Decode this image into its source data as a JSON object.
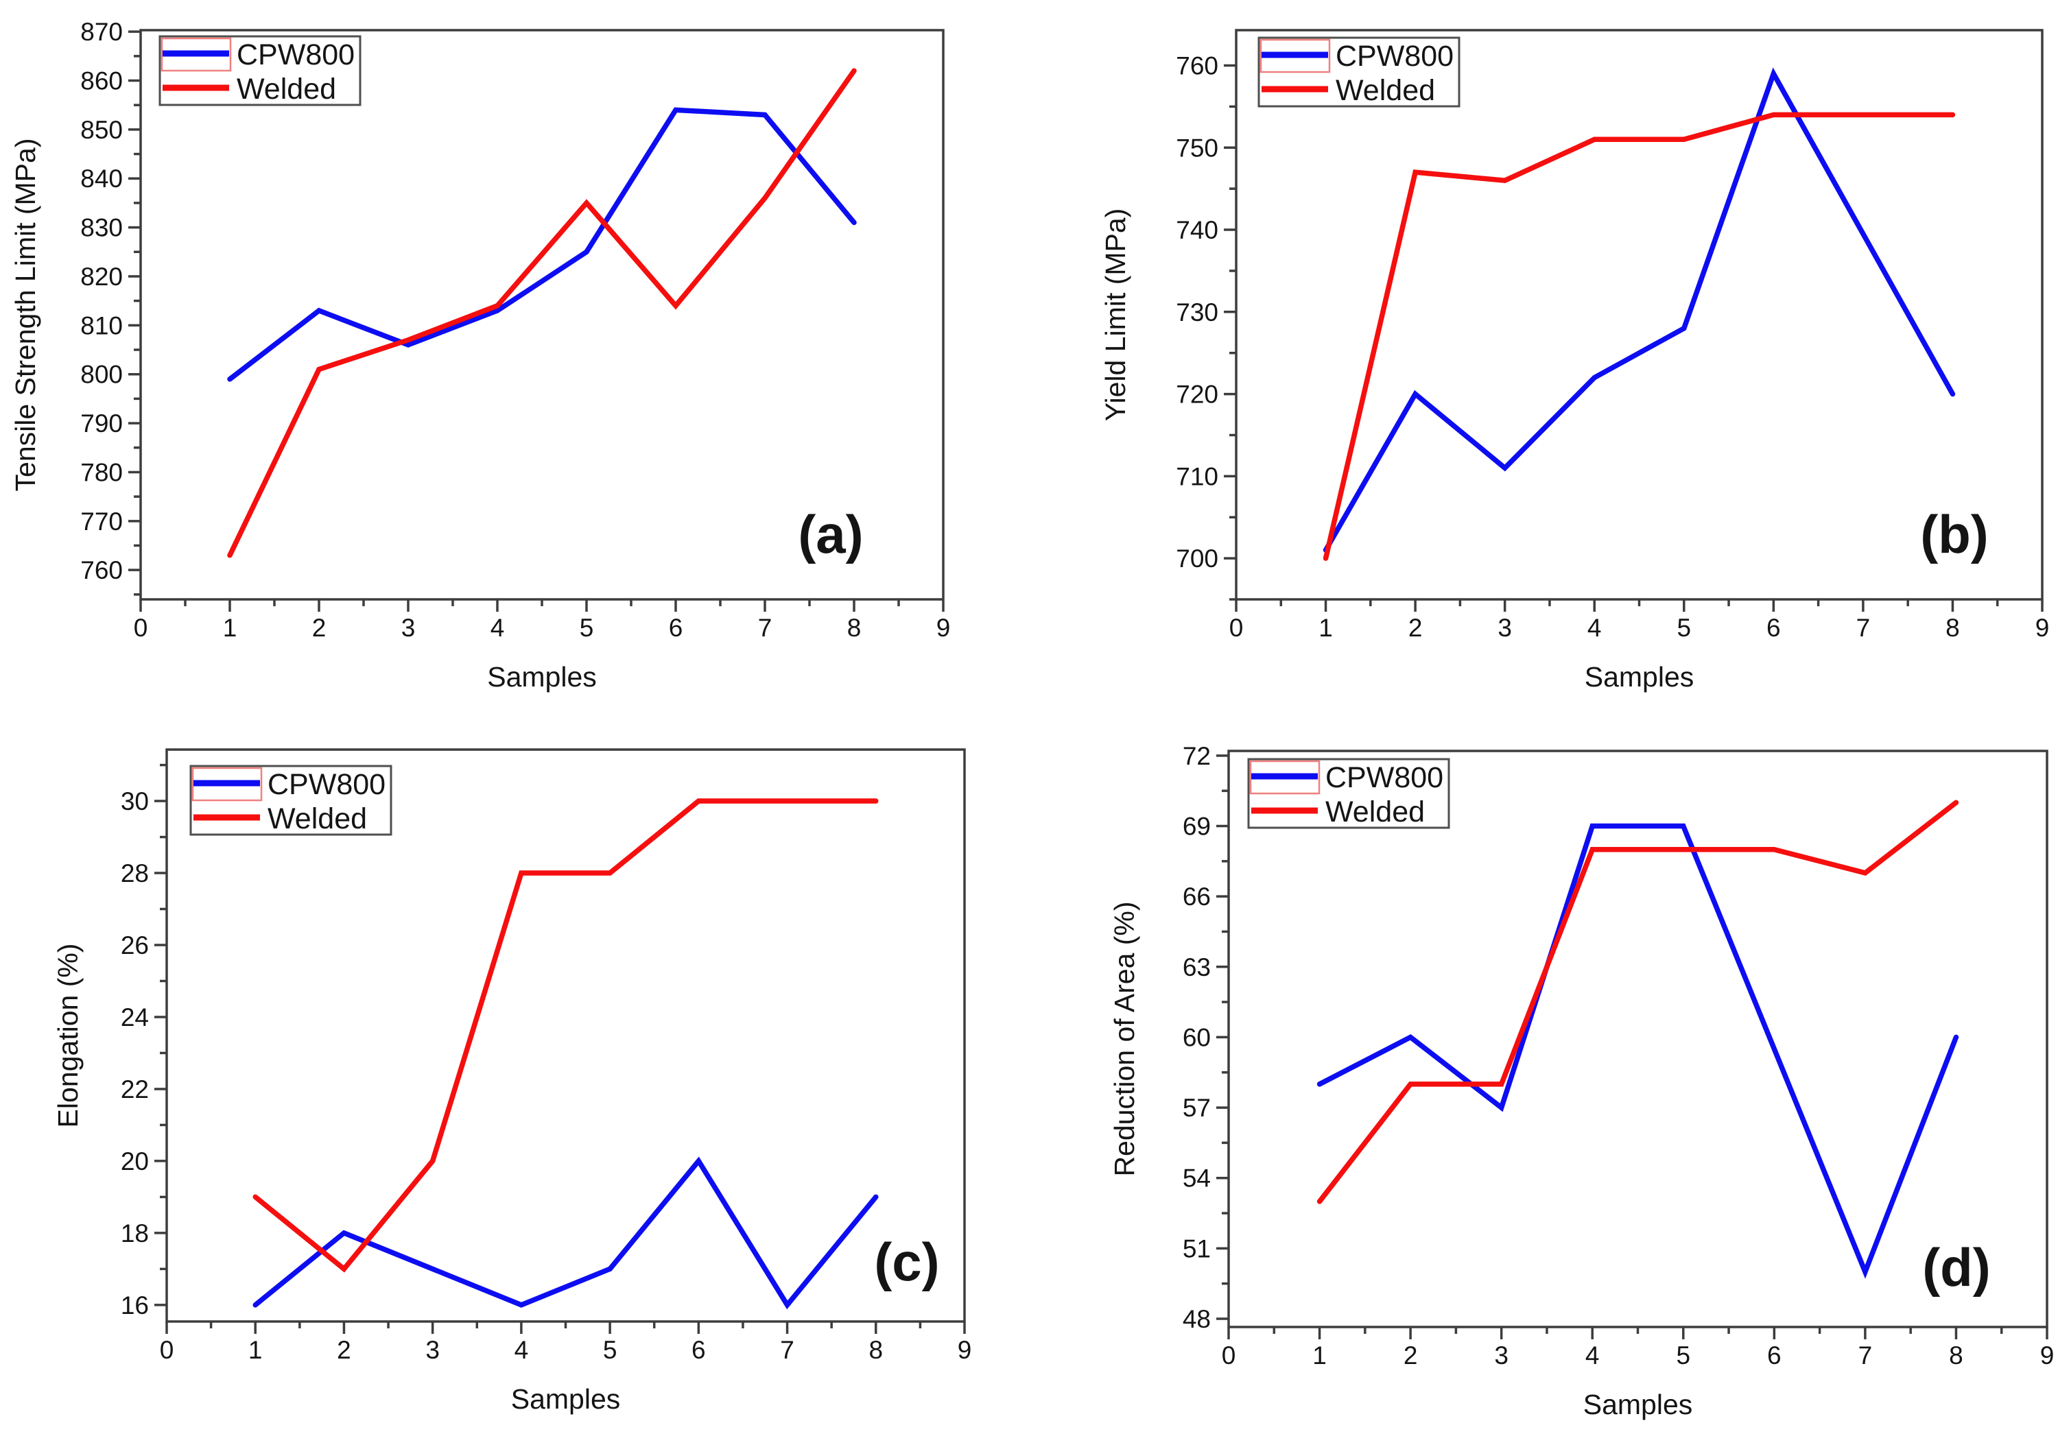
{
  "figure": {
    "description": "Four-panel line chart figure comparing CPW800 base metal and Welded samples",
    "panel_labels": [
      "(a)",
      "(b)",
      "(c)",
      "(d)"
    ]
  },
  "style": {
    "background": "#ffffff",
    "axis_color": "#3d3d3d",
    "text_color": "#141414",
    "legend_border_color": "#4f4f4f",
    "legend_artifact_color": "#f08080",
    "cpw800_color": "#0d0df2",
    "welded_color": "#f50f0f"
  },
  "chart_data": [
    {
      "panel_label": "(a)",
      "type": "line",
      "title": "",
      "xlabel": "Samples",
      "ylabel": "Tensile Strength Limit (MPa)",
      "x": [
        1,
        2,
        3,
        4,
        5,
        6,
        7,
        8
      ],
      "series": [
        {
          "name": "CPW800",
          "color": "#0d0df2",
          "values": [
            799,
            813,
            806,
            813,
            825,
            854,
            853,
            831
          ]
        },
        {
          "name": "Welded",
          "color": "#f50f0f",
          "values": [
            763,
            801,
            807,
            814,
            835,
            814,
            836,
            862
          ]
        }
      ],
      "xlim": [
        0,
        9
      ],
      "ylim": [
        754,
        870.3
      ],
      "xticks": [
        0,
        1,
        2,
        3,
        4,
        5,
        6,
        7,
        8,
        9
      ],
      "yticks": [
        760,
        770,
        780,
        790,
        800,
        810,
        820,
        830,
        840,
        850,
        860,
        870
      ],
      "x_minor_step": 0.5,
      "y_minor_step": 5,
      "grid": false,
      "legend": {
        "position": "top-left",
        "entries": [
          "CPW800",
          "Welded"
        ]
      }
    },
    {
      "panel_label": "(b)",
      "type": "line",
      "title": "",
      "xlabel": "Samples",
      "ylabel": "Yield Limit (MPa)",
      "x": [
        1,
        2,
        3,
        4,
        5,
        6,
        7,
        8
      ],
      "series": [
        {
          "name": "CPW800",
          "color": "#0d0df2",
          "values": [
            701,
            720,
            711,
            722,
            728,
            759,
            739.5,
            720
          ]
        },
        {
          "name": "Welded",
          "color": "#f50f0f",
          "values": [
            700,
            747,
            746,
            751,
            751,
            754,
            754,
            754
          ]
        }
      ],
      "xlim": [
        0,
        9
      ],
      "ylim": [
        695,
        764.3
      ],
      "xticks": [
        0,
        1,
        2,
        3,
        4,
        5,
        6,
        7,
        8,
        9
      ],
      "yticks": [
        700,
        710,
        720,
        730,
        740,
        750,
        760
      ],
      "x_minor_step": 0.5,
      "y_minor_step": 5,
      "grid": false,
      "legend": {
        "position": "top-left",
        "entries": [
          "CPW800",
          "Welded"
        ]
      }
    },
    {
      "panel_label": "(c)",
      "type": "line",
      "title": "",
      "xlabel": "Samples",
      "ylabel": "Elongation (%)",
      "x": [
        1,
        2,
        3,
        4,
        5,
        6,
        7,
        8
      ],
      "series": [
        {
          "name": "CPW800",
          "color": "#0d0df2",
          "values": [
            16,
            18,
            17,
            16,
            17,
            20,
            16,
            19
          ]
        },
        {
          "name": "Welded",
          "color": "#f50f0f",
          "values": [
            19,
            17,
            20,
            28,
            28,
            30,
            30,
            30
          ]
        }
      ],
      "xlim": [
        0,
        9
      ],
      "ylim": [
        15.54,
        31.43
      ],
      "xticks": [
        0,
        1,
        2,
        3,
        4,
        5,
        6,
        7,
        8,
        9
      ],
      "yticks": [
        16,
        18,
        20,
        22,
        24,
        26,
        28,
        30
      ],
      "x_minor_step": 0.5,
      "y_minor_step": 1,
      "grid": false,
      "legend": {
        "position": "top-left",
        "entries": [
          "CPW800",
          "Welded"
        ]
      }
    },
    {
      "panel_label": "(d)",
      "type": "line",
      "title": "",
      "xlabel": "Samples",
      "ylabel": "Reduction of Area (%)",
      "x": [
        1,
        2,
        3,
        4,
        5,
        6,
        7,
        8
      ],
      "series": [
        {
          "name": "CPW800",
          "color": "#0d0df2",
          "values": [
            58,
            60,
            57,
            69,
            69,
            59.5,
            50,
            60
          ]
        },
        {
          "name": "Welded",
          "color": "#f50f0f",
          "values": [
            53,
            58,
            58,
            68,
            68,
            68,
            67,
            70
          ]
        }
      ],
      "xlim": [
        0,
        9
      ],
      "ylim": [
        47.65,
        72.2
      ],
      "xticks": [
        0,
        1,
        2,
        3,
        4,
        5,
        6,
        7,
        8,
        9
      ],
      "yticks": [
        48,
        51,
        54,
        57,
        60,
        63,
        66,
        69,
        72
      ],
      "x_minor_step": 0.5,
      "y_minor_step": 1.5,
      "grid": false,
      "legend": {
        "position": "top-left",
        "entries": [
          "CPW800",
          "Welded"
        ]
      }
    }
  ]
}
